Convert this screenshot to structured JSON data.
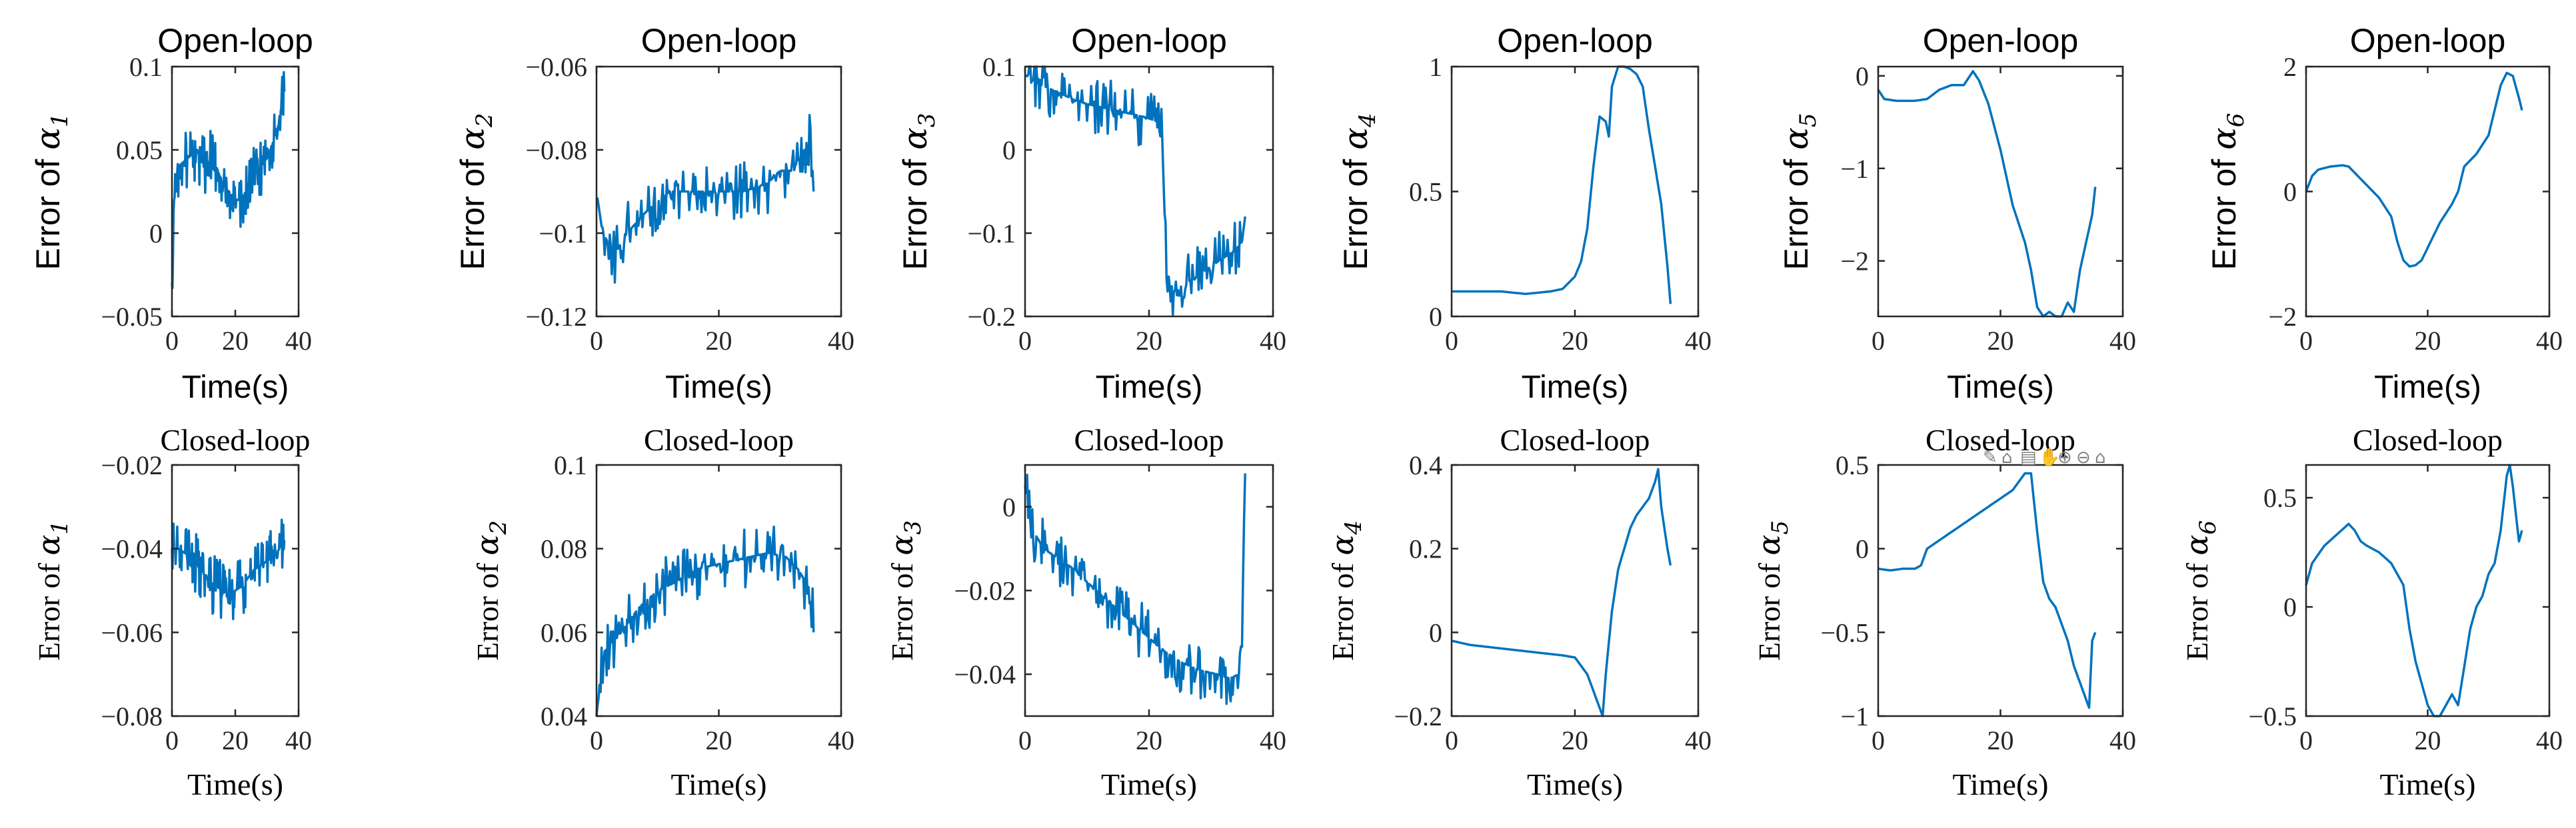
{
  "colors": {
    "line": "#0072BD",
    "axis": "#262626",
    "toolbar": "#808080"
  },
  "toolbar": {
    "icons": [
      "pencil-icon",
      "pin-icon",
      "save-icon",
      "hand-pan-icon",
      "zoom-in-icon",
      "zoom-out-icon",
      "home-icon"
    ],
    "glyphs": [
      "✎",
      "⌂",
      "▤",
      "✋",
      "⊕",
      "⊖",
      "⌂"
    ]
  },
  "chart_data": [
    {
      "id": "ol1",
      "type": "line",
      "title": "Open-loop",
      "xlabel": "Time(s)",
      "ylabel_prefix": "Error of ",
      "ylabel_symbol": "α",
      "ylabel_sub": "1",
      "xlim": [
        0,
        40
      ],
      "ylim": [
        -0.05,
        0.1
      ],
      "xticks": [
        0,
        20,
        40
      ],
      "yticks": [
        -0.05,
        0,
        0.05,
        0.1
      ],
      "ytick_labels": [
        "−0.05",
        "0",
        "0.05",
        "0.1"
      ],
      "noisy": true,
      "series": [
        {
          "name": "error",
          "x": [
            0,
            0.5,
            1,
            2,
            5,
            8,
            10,
            13,
            16,
            18,
            20,
            22,
            24,
            26,
            28,
            30,
            32,
            34,
            35.5
          ],
          "y": [
            -0.03,
            0.01,
            0.03,
            0.04,
            0.045,
            0.05,
            0.04,
            0.045,
            0.03,
            0.025,
            0.02,
            0.02,
            0.03,
            0.035,
            0.04,
            0.045,
            0.055,
            0.07,
            0.085
          ]
        }
      ]
    },
    {
      "id": "ol2",
      "type": "line",
      "title": "Open-loop",
      "xlabel": "Time(s)",
      "ylabel_prefix": "Error of ",
      "ylabel_symbol": "α",
      "ylabel_sub": "2",
      "xlim": [
        0,
        40
      ],
      "ylim": [
        -0.12,
        -0.06
      ],
      "xticks": [
        0,
        20,
        40
      ],
      "yticks": [
        -0.12,
        -0.1,
        -0.08,
        -0.06
      ],
      "ytick_labels": [
        "−0.12",
        "−0.1",
        "−0.08",
        "−0.06"
      ],
      "noisy": true,
      "series": [
        {
          "name": "error",
          "x": [
            0,
            1,
            3,
            5,
            8,
            12,
            16,
            20,
            24,
            28,
            30,
            32,
            34,
            35,
            35.5
          ],
          "y": [
            -0.09,
            -0.1,
            -0.105,
            -0.1,
            -0.095,
            -0.09,
            -0.09,
            -0.09,
            -0.09,
            -0.088,
            -0.085,
            -0.085,
            -0.08,
            -0.075,
            -0.09
          ]
        }
      ]
    },
    {
      "id": "ol3",
      "type": "line",
      "title": "Open-loop",
      "xlabel": "Time(s)",
      "ylabel_prefix": "Error of ",
      "ylabel_symbol": "α",
      "ylabel_sub": "3",
      "xlim": [
        0,
        40
      ],
      "ylim": [
        -0.2,
        0.1
      ],
      "xticks": [
        0,
        20,
        40
      ],
      "yticks": [
        -0.2,
        -0.1,
        0,
        0.1
      ],
      "ytick_labels": [
        "−0.2",
        "−0.1",
        "0",
        "0.1"
      ],
      "noisy": true,
      "series": [
        {
          "name": "error",
          "x": [
            0,
            2,
            5,
            8,
            10,
            13,
            16,
            19,
            21,
            22,
            22.5,
            23,
            24,
            26,
            28,
            30,
            32,
            34,
            35,
            35.5
          ],
          "y": [
            0.09,
            0.08,
            0.07,
            0.06,
            0.055,
            0.05,
            0.045,
            0.04,
            0.035,
            0.03,
            -0.05,
            -0.16,
            -0.17,
            -0.16,
            -0.15,
            -0.14,
            -0.13,
            -0.12,
            -0.11,
            -0.08
          ]
        }
      ]
    },
    {
      "id": "ol4",
      "type": "line",
      "title": "Open-loop",
      "xlabel": "Time(s)",
      "ylabel_prefix": "Error of ",
      "ylabel_symbol": "α",
      "ylabel_sub": "4",
      "xlim": [
        0,
        40
      ],
      "ylim": [
        0,
        1
      ],
      "xticks": [
        0,
        20,
        40
      ],
      "yticks": [
        0,
        0.5,
        1
      ],
      "ytick_labels": [
        "0",
        "0.5",
        "1"
      ],
      "noisy": false,
      "series": [
        {
          "name": "error",
          "x": [
            0,
            4,
            8,
            12,
            16,
            18,
            20,
            21,
            22,
            23,
            24,
            25,
            25.5,
            26,
            27,
            28,
            29,
            30,
            31,
            32,
            33,
            34,
            35,
            35.5
          ],
          "y": [
            0.1,
            0.1,
            0.1,
            0.09,
            0.1,
            0.11,
            0.16,
            0.22,
            0.35,
            0.6,
            0.8,
            0.78,
            0.72,
            0.92,
            1.0,
            1.0,
            0.99,
            0.97,
            0.92,
            0.75,
            0.6,
            0.45,
            0.2,
            0.05
          ]
        }
      ]
    },
    {
      "id": "ol5",
      "type": "line",
      "title": "Open-loop",
      "xlabel": "Time(s)",
      "ylabel_prefix": "Error of ",
      "ylabel_symbol": "α",
      "ylabel_sub": "5",
      "xlim": [
        0,
        40
      ],
      "ylim": [
        -2.6,
        0.1
      ],
      "xticks": [
        0,
        20,
        40
      ],
      "yticks": [
        -2,
        -1,
        0
      ],
      "ytick_labels": [
        "−2",
        "−1",
        "0"
      ],
      "noisy": false,
      "series": [
        {
          "name": "error",
          "x": [
            0,
            1,
            3,
            6,
            8,
            10,
            12,
            14,
            15.5,
            16.5,
            18,
            20,
            22,
            23,
            24,
            25,
            26,
            27,
            28,
            29,
            30,
            31,
            32,
            33,
            34,
            35,
            35.5
          ],
          "y": [
            -0.15,
            -0.25,
            -0.27,
            -0.27,
            -0.25,
            -0.15,
            -0.1,
            -0.1,
            0.05,
            -0.05,
            -0.3,
            -0.8,
            -1.4,
            -1.6,
            -1.8,
            -2.1,
            -2.5,
            -2.6,
            -2.55,
            -2.6,
            -2.6,
            -2.45,
            -2.55,
            -2.1,
            -1.8,
            -1.5,
            -1.2
          ]
        }
      ]
    },
    {
      "id": "ol6",
      "type": "line",
      "title": "Open-loop",
      "xlabel": "Time(s)",
      "ylabel_prefix": "Error of ",
      "ylabel_symbol": "α",
      "ylabel_sub": "6",
      "xlim": [
        0,
        40
      ],
      "ylim": [
        -2,
        2
      ],
      "xticks": [
        0,
        20,
        40
      ],
      "yticks": [
        -2,
        0,
        2
      ],
      "ytick_labels": [
        "−2",
        "0",
        "2"
      ],
      "noisy": false,
      "series": [
        {
          "name": "error",
          "x": [
            0,
            1,
            2,
            4,
            6,
            7,
            8,
            10,
            12,
            14,
            15,
            16,
            17,
            18,
            19,
            20,
            22,
            24,
            25,
            26,
            28,
            30,
            31,
            32,
            33,
            34,
            35,
            35.5
          ],
          "y": [
            0,
            0.25,
            0.35,
            0.4,
            0.42,
            0.4,
            0.3,
            0.1,
            -0.1,
            -0.4,
            -0.8,
            -1.1,
            -1.2,
            -1.18,
            -1.1,
            -0.9,
            -0.5,
            -0.2,
            0,
            0.4,
            0.6,
            0.9,
            1.3,
            1.7,
            1.9,
            1.85,
            1.5,
            1.3
          ]
        }
      ]
    },
    {
      "id": "cl1",
      "type": "line",
      "title": "Closed-loop",
      "xlabel": "Time(s)",
      "ylabel_prefix": "Error of ",
      "ylabel_symbol": "α",
      "ylabel_sub": "1",
      "xlim": [
        0,
        40
      ],
      "ylim": [
        -0.08,
        -0.02
      ],
      "xticks": [
        0,
        20,
        40
      ],
      "yticks": [
        -0.08,
        -0.06,
        -0.04,
        -0.02
      ],
      "ytick_labels": [
        "−0.08",
        "−0.06",
        "−0.04",
        "−0.02"
      ],
      "noisy": true,
      "series": [
        {
          "name": "error",
          "x": [
            0,
            2,
            4,
            6,
            8,
            10,
            12,
            14,
            16,
            18,
            20,
            22,
            24,
            26,
            28,
            30,
            32,
            34,
            35.5
          ],
          "y": [
            -0.04,
            -0.04,
            -0.041,
            -0.042,
            -0.044,
            -0.046,
            -0.048,
            -0.049,
            -0.05,
            -0.052,
            -0.05,
            -0.049,
            -0.047,
            -0.045,
            -0.044,
            -0.043,
            -0.042,
            -0.04,
            -0.038
          ]
        }
      ]
    },
    {
      "id": "cl2",
      "type": "line",
      "title": "Closed-loop",
      "xlabel": "Time(s)",
      "ylabel_prefix": "Error of ",
      "ylabel_symbol": "α",
      "ylabel_sub": "2",
      "xlim": [
        0,
        40
      ],
      "ylim": [
        0.04,
        0.1
      ],
      "xticks": [
        0,
        20,
        40
      ],
      "yticks": [
        0.04,
        0.06,
        0.08,
        0.1
      ],
      "ytick_labels": [
        "0.04",
        "0.06",
        "0.08",
        "0.1"
      ],
      "noisy": true,
      "series": [
        {
          "name": "error",
          "x": [
            0,
            1,
            3,
            5,
            7,
            10,
            13,
            16,
            19,
            22,
            25,
            28,
            31,
            33,
            35,
            35.5
          ],
          "y": [
            0.04,
            0.055,
            0.058,
            0.062,
            0.066,
            0.07,
            0.072,
            0.075,
            0.076,
            0.077,
            0.078,
            0.079,
            0.078,
            0.075,
            0.07,
            0.06
          ]
        }
      ]
    },
    {
      "id": "cl3",
      "type": "line",
      "title": "Closed-loop",
      "xlabel": "Time(s)",
      "ylabel_prefix": "Error of ",
      "ylabel_symbol": "α",
      "ylabel_sub": "3",
      "xlim": [
        0,
        40
      ],
      "ylim": [
        -0.05,
        0.01
      ],
      "xticks": [
        0,
        20,
        40
      ],
      "yticks": [
        -0.04,
        -0.02,
        0
      ],
      "ytick_labels": [
        "−0.04",
        "−0.02",
        "0"
      ],
      "noisy": true,
      "series": [
        {
          "name": "error",
          "x": [
            0,
            1,
            3,
            5,
            8,
            10,
            13,
            16,
            19,
            22,
            25,
            28,
            31,
            33,
            34.5,
            35,
            35.5
          ],
          "y": [
            0.005,
            -0.005,
            -0.01,
            -0.012,
            -0.015,
            -0.018,
            -0.022,
            -0.026,
            -0.03,
            -0.034,
            -0.037,
            -0.039,
            -0.04,
            -0.041,
            -0.04,
            -0.03,
            0.008
          ]
        }
      ]
    },
    {
      "id": "cl4",
      "type": "line",
      "title": "Closed-loop",
      "xlabel": "Time(s)",
      "ylabel_prefix": "Error of ",
      "ylabel_symbol": "α",
      "ylabel_sub": "4",
      "xlim": [
        0,
        40
      ],
      "ylim": [
        -0.2,
        0.4
      ],
      "xticks": [
        0,
        20,
        40
      ],
      "yticks": [
        -0.2,
        0,
        0.2,
        0.4
      ],
      "ytick_labels": [
        "−0.2",
        "0",
        "0.2",
        "0.4"
      ],
      "noisy": false,
      "series": [
        {
          "name": "error",
          "x": [
            0,
            3,
            6,
            9,
            12,
            15,
            18,
            20,
            21,
            22,
            23,
            24,
            24.5,
            25,
            26,
            27,
            28,
            29,
            30,
            31,
            32,
            33,
            33.5,
            34,
            35,
            35.5
          ],
          "y": [
            -0.02,
            -0.03,
            -0.035,
            -0.04,
            -0.045,
            -0.05,
            -0.055,
            -0.06,
            -0.08,
            -0.1,
            -0.14,
            -0.18,
            -0.2,
            -0.1,
            0.05,
            0.15,
            0.2,
            0.25,
            0.28,
            0.3,
            0.32,
            0.36,
            0.39,
            0.3,
            0.2,
            0.16
          ]
        }
      ]
    },
    {
      "id": "cl5",
      "type": "line",
      "title": "Closed-loop",
      "xlabel": "Time(s)",
      "ylabel_prefix": "Error of ",
      "ylabel_symbol": "α",
      "ylabel_sub": "5",
      "xlim": [
        0,
        40
      ],
      "ylim": [
        -1,
        0.5
      ],
      "xticks": [
        0,
        20,
        40
      ],
      "yticks": [
        -1,
        -0.5,
        0,
        0.5
      ],
      "ytick_labels": [
        "−1",
        "−0.5",
        "0",
        "0.5"
      ],
      "noisy": false,
      "series": [
        {
          "name": "error",
          "x": [
            0,
            2,
            4,
            6,
            7,
            8,
            10,
            12,
            14,
            16,
            18,
            20,
            22,
            23,
            24,
            25,
            26,
            27,
            28,
            29,
            30,
            31,
            32,
            33,
            34,
            34.5,
            35,
            35.5
          ],
          "y": [
            -0.12,
            -0.13,
            -0.12,
            -0.12,
            -0.1,
            0,
            0.05,
            0.1,
            0.15,
            0.2,
            0.25,
            0.3,
            0.35,
            0.4,
            0.45,
            0.45,
            0.1,
            -0.2,
            -0.3,
            -0.35,
            -0.45,
            -0.55,
            -0.7,
            -0.8,
            -0.9,
            -0.95,
            -0.55,
            -0.5
          ]
        }
      ]
    },
    {
      "id": "cl6",
      "type": "line",
      "title": "Closed-loop",
      "xlabel": "Time(s)",
      "ylabel_prefix": "Error of ",
      "ylabel_symbol": "α",
      "ylabel_sub": "6",
      "xlim": [
        0,
        40
      ],
      "ylim": [
        -0.5,
        0.65
      ],
      "xticks": [
        0,
        20,
        40
      ],
      "yticks": [
        -0.5,
        0,
        0.5
      ],
      "ytick_labels": [
        "−0.5",
        "0",
        "0.5"
      ],
      "noisy": false,
      "series": [
        {
          "name": "error",
          "x": [
            0,
            1,
            3,
            5,
            7,
            8,
            9,
            10,
            12,
            14,
            16,
            17,
            18,
            19,
            20,
            21,
            22,
            23,
            24,
            25,
            27,
            28,
            29,
            30,
            31,
            32,
            33,
            33.5,
            34,
            35,
            35.5
          ],
          "y": [
            0.1,
            0.2,
            0.28,
            0.33,
            0.38,
            0.35,
            0.3,
            0.28,
            0.25,
            0.2,
            0.1,
            -0.1,
            -0.25,
            -0.35,
            -0.45,
            -0.5,
            -0.5,
            -0.45,
            -0.4,
            -0.45,
            -0.1,
            0,
            0.05,
            0.15,
            0.2,
            0.35,
            0.6,
            0.65,
            0.55,
            0.3,
            0.35
          ]
        }
      ]
    }
  ]
}
